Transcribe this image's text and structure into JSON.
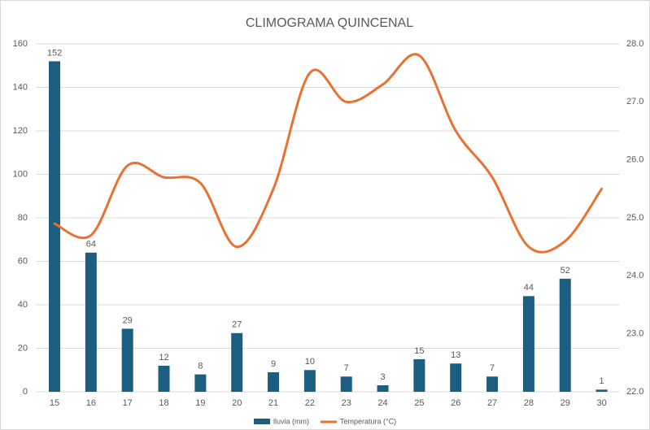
{
  "chart_data": {
    "type": "bar_line",
    "title": "CLIMOGRAMA QUINCENAL",
    "categories": [
      "15",
      "16",
      "17",
      "18",
      "19",
      "20",
      "21",
      "22",
      "23",
      "24",
      "25",
      "26",
      "27",
      "28",
      "29",
      "30"
    ],
    "series": [
      {
        "name": "lluvia (mm)",
        "type": "bar",
        "color": "#1b5e80",
        "values": [
          152,
          64,
          29,
          12,
          8,
          27,
          9,
          10,
          7,
          3,
          15,
          13,
          7,
          44,
          52,
          1
        ]
      },
      {
        "name": "Temperatura (°C)",
        "type": "line",
        "axis": "y2",
        "color": "#e97132",
        "values": [
          24.9,
          24.7,
          25.9,
          25.7,
          25.6,
          24.5,
          25.5,
          27.5,
          27.0,
          27.3,
          27.8,
          26.5,
          25.7,
          24.5,
          24.6,
          25.5
        ]
      }
    ],
    "ylim": [
      0,
      160
    ],
    "yticks": [
      0,
      20,
      40,
      60,
      80,
      100,
      120,
      140,
      160
    ],
    "y2lim": [
      22,
      28
    ],
    "y2ticks": [
      {
        "value": 22,
        "label": "22.0"
      },
      {
        "value": 23,
        "label": "23.0"
      },
      {
        "value": 24,
        "label": "24.0"
      },
      {
        "value": 25,
        "label": "25.0"
      },
      {
        "value": 26,
        "label": "26.0"
      },
      {
        "value": 27,
        "label": "27.0"
      },
      {
        "value": 28,
        "label": "28.0"
      }
    ],
    "grid": true,
    "legend": "bottom"
  }
}
